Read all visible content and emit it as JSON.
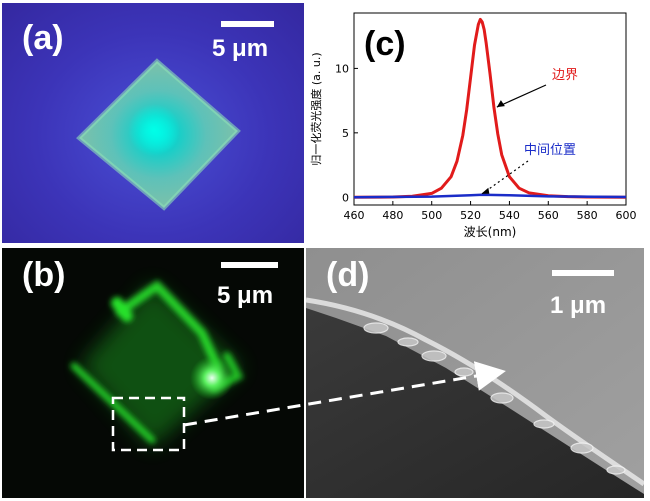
{
  "panels": {
    "a": {
      "label": "(a)",
      "scale_label": "5 μm"
    },
    "b": {
      "label": "(b)",
      "scale_label": "5 μm"
    },
    "c": {
      "label": "(c)"
    },
    "d": {
      "label": "(d)",
      "scale_label": "1 μm"
    }
  },
  "colors": {
    "edge_curve": "#e11b1b",
    "center_curve": "#1a2cc8",
    "fluorescence_green": "#27e22c",
    "micrograph_purple": "#3c34b8"
  },
  "chart_data": {
    "type": "line",
    "xlabel": "波长(nm)",
    "ylabel": "归一化荧光强度 (a. u.)",
    "xlim": [
      460,
      600
    ],
    "ylim": [
      -0.6,
      14.3
    ],
    "xticks": [
      460,
      480,
      500,
      520,
      540,
      560,
      580,
      600
    ],
    "yticks": [
      0,
      5,
      10
    ],
    "grid": false,
    "series": [
      {
        "name": "边界",
        "color": "#e11b1b",
        "x": [
          460,
          480,
          490,
          500,
          505,
          510,
          513,
          516,
          518,
          520,
          522,
          524,
          525,
          526,
          527,
          528,
          530,
          532,
          534,
          536,
          540,
          545,
          550,
          560,
          570,
          580,
          600
        ],
        "y": [
          0.0,
          0.02,
          0.08,
          0.3,
          0.7,
          1.6,
          2.8,
          4.8,
          6.8,
          9.3,
          11.8,
          13.4,
          13.8,
          13.6,
          13.0,
          12.0,
          9.6,
          7.0,
          4.9,
          3.3,
          1.6,
          0.7,
          0.35,
          0.12,
          0.05,
          0.02,
          0.0
        ]
      },
      {
        "name": "中间位置",
        "color": "#1a2cc8",
        "x": [
          460,
          500,
          520,
          526,
          540,
          560,
          600
        ],
        "y": [
          0.0,
          0.05,
          0.15,
          0.2,
          0.15,
          0.07,
          0.02
        ]
      }
    ],
    "annotations": [
      {
        "text": "边界",
        "target_x": 532,
        "target_y": 7.0,
        "style": "solid-arrow"
      },
      {
        "text": "中间位置",
        "target_x": 524,
        "target_y": 0.2,
        "style": "dotted-arrow"
      }
    ]
  }
}
